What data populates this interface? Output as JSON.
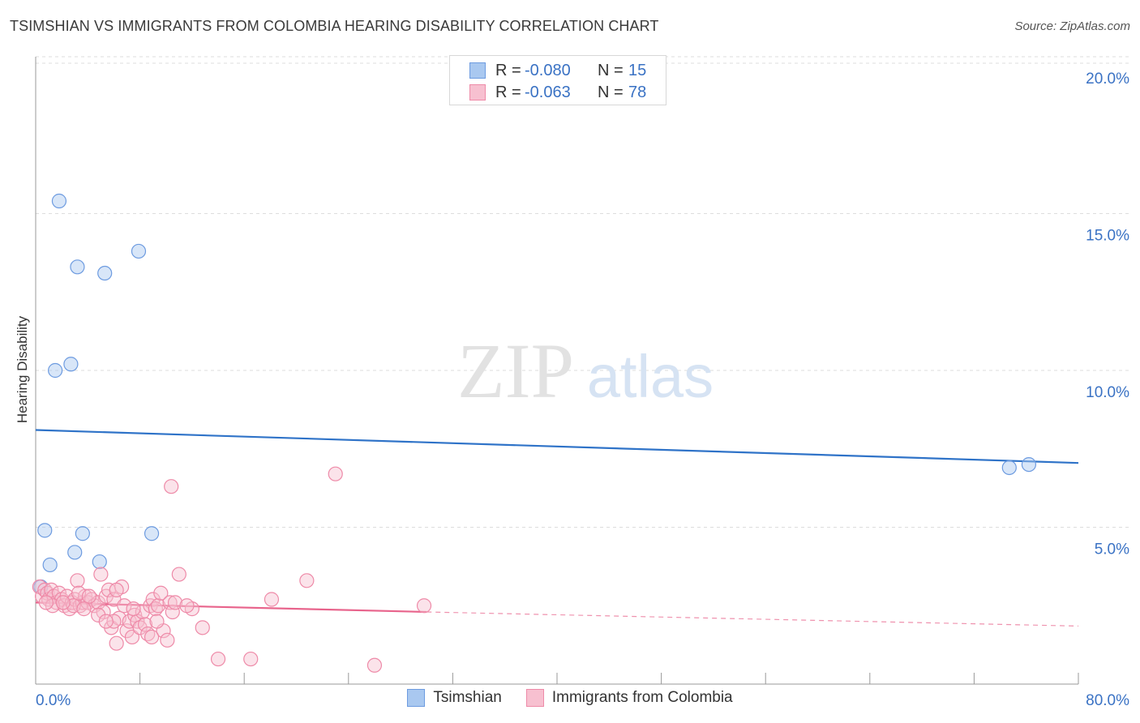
{
  "title": "TSIMSHIAN VS IMMIGRANTS FROM COLOMBIA HEARING DISABILITY CORRELATION CHART",
  "source": "Source: ZipAtlas.com",
  "watermark": {
    "part1": "ZIP",
    "part2": "atlas"
  },
  "legend": {
    "rows": [
      {
        "label": "R =",
        "r": "-0.080",
        "n_label": "N =",
        "n": "15",
        "color": "#a9c8f0",
        "border": "#6d9be0"
      },
      {
        "label": "R =",
        "r": "-0.063",
        "n_label": "N =",
        "n": "78",
        "color": "#f7c0d0",
        "border": "#ee8aa8"
      }
    ]
  },
  "chart_data": {
    "type": "scatter",
    "title": "TSIMSHIAN VS IMMIGRANTS FROM COLOMBIA HEARING DISABILITY CORRELATION CHART",
    "xlabel": "",
    "ylabel": "Hearing Disability",
    "xlim": [
      0,
      80
    ],
    "ylim": [
      0,
      20
    ],
    "x_tick_labels": [
      "0.0%",
      "80.0%"
    ],
    "y_ticks": [
      5,
      10,
      15,
      20
    ],
    "y_tick_labels": [
      "5.0%",
      "10.0%",
      "15.0%",
      "20.0%"
    ],
    "grid": true,
    "legend_position": "top-center",
    "series": [
      {
        "name": "Tsimshian",
        "color": "#6d9be0",
        "fill": "#a9c8f0",
        "line_color": "#2f73c8",
        "trend": {
          "x": [
            0,
            80
          ],
          "y": [
            8.1,
            7.05
          ]
        },
        "points": [
          [
            1.8,
            15.4
          ],
          [
            3.2,
            13.3
          ],
          [
            5.3,
            13.1
          ],
          [
            7.9,
            13.8
          ],
          [
            1.5,
            10.0
          ],
          [
            2.7,
            10.2
          ],
          [
            0.7,
            4.9
          ],
          [
            3.6,
            4.8
          ],
          [
            8.9,
            4.8
          ],
          [
            3.0,
            4.2
          ],
          [
            1.1,
            3.8
          ],
          [
            4.9,
            3.9
          ],
          [
            0.4,
            3.1
          ],
          [
            74.7,
            6.9
          ],
          [
            76.2,
            7.0
          ]
        ]
      },
      {
        "name": "Immigrants from Colombia",
        "color": "#ee8aa8",
        "fill": "#f7c0d0",
        "line_color": "#e8648c",
        "trend": {
          "x": [
            0,
            30
          ],
          "y": [
            2.6,
            2.3
          ]
        },
        "trend_ext": {
          "x": [
            30,
            80
          ],
          "y": [
            2.3,
            1.85
          ]
        },
        "points": [
          [
            0.3,
            3.1
          ],
          [
            0.5,
            2.8
          ],
          [
            0.7,
            3.0
          ],
          [
            0.9,
            2.9
          ],
          [
            1.0,
            2.7
          ],
          [
            1.2,
            3.0
          ],
          [
            1.4,
            2.8
          ],
          [
            1.6,
            2.6
          ],
          [
            1.8,
            2.9
          ],
          [
            2.0,
            2.7
          ],
          [
            2.2,
            2.5
          ],
          [
            2.4,
            2.8
          ],
          [
            2.6,
            2.4
          ],
          [
            2.8,
            2.6
          ],
          [
            3.0,
            2.7
          ],
          [
            3.2,
            3.3
          ],
          [
            3.4,
            2.5
          ],
          [
            3.6,
            2.6
          ],
          [
            3.8,
            2.8
          ],
          [
            4.0,
            2.6
          ],
          [
            4.3,
            2.7
          ],
          [
            4.5,
            2.5
          ],
          [
            4.8,
            2.6
          ],
          [
            5.0,
            3.5
          ],
          [
            5.2,
            2.3
          ],
          [
            5.4,
            2.8
          ],
          [
            5.6,
            3.0
          ],
          [
            5.8,
            1.8
          ],
          [
            6.0,
            2.7
          ],
          [
            6.2,
            1.3
          ],
          [
            6.4,
            2.1
          ],
          [
            6.6,
            3.1
          ],
          [
            6.8,
            2.5
          ],
          [
            7.0,
            1.7
          ],
          [
            7.2,
            2.0
          ],
          [
            7.4,
            1.5
          ],
          [
            7.6,
            2.2
          ],
          [
            7.8,
            2.0
          ],
          [
            8.0,
            1.8
          ],
          [
            8.2,
            2.3
          ],
          [
            8.4,
            1.9
          ],
          [
            8.6,
            1.6
          ],
          [
            8.8,
            2.5
          ],
          [
            9.0,
            2.7
          ],
          [
            9.2,
            2.4
          ],
          [
            9.4,
            2.5
          ],
          [
            9.6,
            2.9
          ],
          [
            9.8,
            1.7
          ],
          [
            10.1,
            1.4
          ],
          [
            10.3,
            2.6
          ],
          [
            10.5,
            2.3
          ],
          [
            10.7,
            2.6
          ],
          [
            11.0,
            3.5
          ],
          [
            12.0,
            2.4
          ],
          [
            12.8,
            1.8
          ],
          [
            14.0,
            0.8
          ],
          [
            16.5,
            0.8
          ],
          [
            18.1,
            2.7
          ],
          [
            20.8,
            3.3
          ],
          [
            23.0,
            6.7
          ],
          [
            26.0,
            0.6
          ],
          [
            29.8,
            2.5
          ],
          [
            10.4,
            6.3
          ],
          [
            6.2,
            3.0
          ],
          [
            4.8,
            2.2
          ],
          [
            3.3,
            2.9
          ],
          [
            2.9,
            2.5
          ],
          [
            1.3,
            2.5
          ],
          [
            0.8,
            2.6
          ],
          [
            6.0,
            2.0
          ],
          [
            7.5,
            2.4
          ],
          [
            8.9,
            1.5
          ],
          [
            5.4,
            2.0
          ],
          [
            4.1,
            2.8
          ],
          [
            2.1,
            2.6
          ],
          [
            3.7,
            2.4
          ],
          [
            11.6,
            2.5
          ],
          [
            9.3,
            2.0
          ]
        ]
      }
    ]
  }
}
